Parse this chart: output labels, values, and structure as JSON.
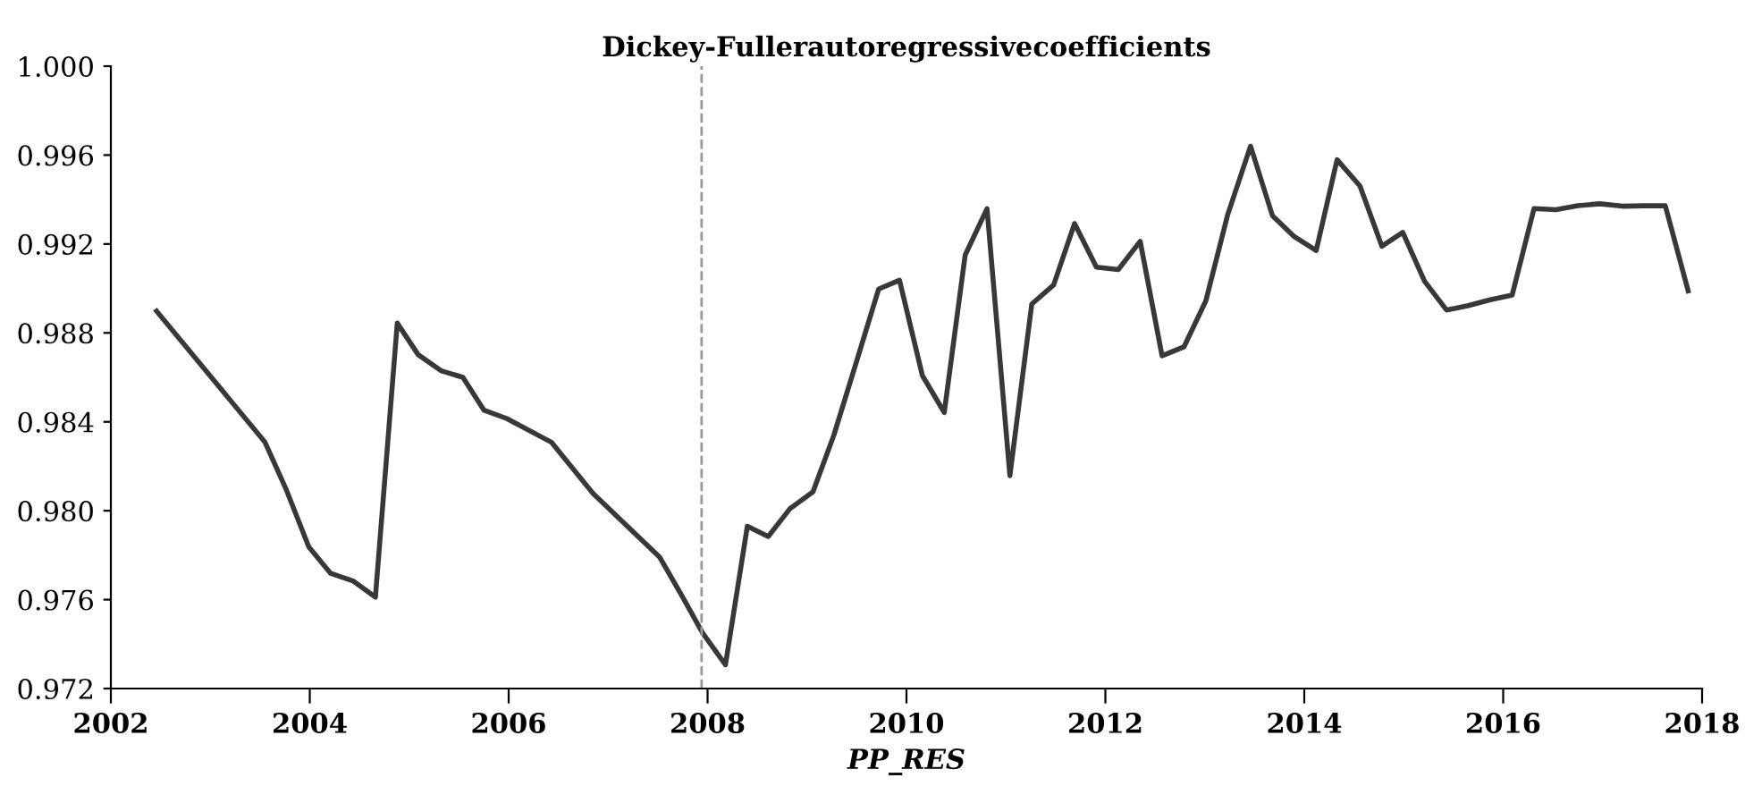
{
  "chart_data": {
    "type": "line",
    "title": "Dickey-Fullerautoregressivecoefficients",
    "xlabel": "PP_RES",
    "x": [
      2002.46,
      2003.55,
      2003.76,
      2003.99,
      2004.21,
      2004.44,
      2004.66,
      2004.88,
      2005.09,
      2005.32,
      2005.54,
      2005.75,
      2005.98,
      2006.43,
      2006.85,
      2007.52,
      2007.75,
      2007.95,
      2008.18,
      2008.4,
      2008.61,
      2008.83,
      2009.06,
      2009.27,
      2009.51,
      2009.72,
      2009.93,
      2010.16,
      2010.38,
      2010.59,
      2010.81,
      2011.04,
      2011.26,
      2011.48,
      2011.69,
      2011.91,
      2012.13,
      2012.35,
      2012.57,
      2012.79,
      2013.01,
      2013.23,
      2013.46,
      2013.68,
      2013.9,
      2014.12,
      2014.33,
      2014.56,
      2014.78,
      2014.99,
      2015.21,
      2015.43,
      2015.64,
      2015.87,
      2016.09,
      2016.31,
      2016.53,
      2016.75,
      2016.97,
      2017.2,
      2017.41,
      2017.63,
      2017.86
    ],
    "series": [
      {
        "color": "#383838",
        "values": [
          0.98898,
          0.98308,
          0.98099,
          0.97838,
          0.97718,
          0.97683,
          0.97611,
          0.98844,
          0.98702,
          0.9863,
          0.986,
          0.98453,
          0.98415,
          0.98308,
          0.98077,
          0.9779,
          0.97611,
          0.9745,
          0.97307,
          0.9793,
          0.97884,
          0.9801,
          0.98085,
          0.9834,
          0.98689,
          0.98997,
          0.99037,
          0.98608,
          0.98442,
          0.9915,
          0.99359,
          0.98158,
          0.9893,
          0.99016,
          0.99292,
          0.99096,
          0.99085,
          0.99212,
          0.98697,
          0.98737,
          0.98944,
          0.99332,
          0.9964,
          0.99327,
          0.99233,
          0.99171,
          0.99579,
          0.99461,
          0.9919,
          0.99252,
          0.99032,
          0.98903,
          0.98922,
          0.98949,
          0.9897,
          0.99359,
          0.99354,
          0.99372,
          0.99381,
          0.9937,
          0.99372,
          0.99372,
          0.98989
        ]
      }
    ],
    "xlim": [
      2002,
      2018
    ],
    "xticks": [
      2002,
      2004,
      2006,
      2008,
      2010,
      2012,
      2014,
      2016,
      2018
    ],
    "ylim": [
      0.972,
      1.0
    ],
    "yticks": [
      0.972,
      0.976,
      {
        "value": 0.98,
        "label": "0.980"
      },
      0.984,
      0.988,
      0.992,
      0.996,
      {
        "value": 1.0,
        "label": "1.000"
      }
    ],
    "ref_lines": [
      {
        "axis": "x",
        "value": 2007.94,
        "color": "#999999",
        "line_style": "dashed"
      }
    ],
    "grid": false,
    "legend": false,
    "line_style": "solid",
    "marker": "none"
  }
}
